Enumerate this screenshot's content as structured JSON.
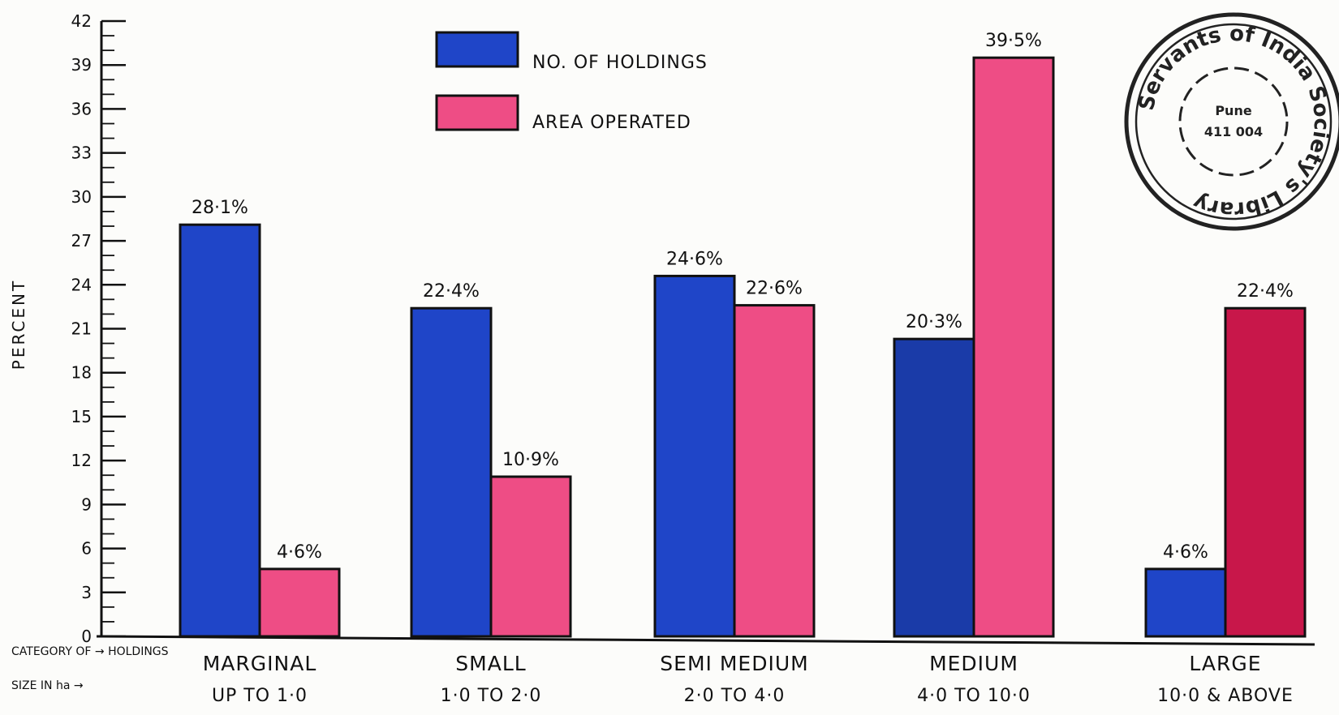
{
  "chart_data": {
    "type": "bar",
    "ylabel": "PERCENT",
    "ylim": [
      0,
      42
    ],
    "yticks": [
      "0",
      "3",
      "6",
      "9",
      "12",
      "15",
      "18",
      "21",
      "24",
      "27",
      "30",
      "33",
      "36",
      "39",
      "42"
    ],
    "axis_notes": {
      "category": "CATEGORY OF → HOLDINGS",
      "size": "SIZE IN ha →"
    },
    "categories": [
      {
        "name": "MARGINAL",
        "range": "UP TO 1·0"
      },
      {
        "name": "SMALL",
        "range": "1·0 TO 2·0"
      },
      {
        "name": "SEMI MEDIUM",
        "range": "2·0 TO 4·0"
      },
      {
        "name": "MEDIUM",
        "range": "4·0 TO 10·0"
      },
      {
        "name": "LARGE",
        "range": "10·0 & ABOVE"
      }
    ],
    "series": [
      {
        "name": "NO. OF HOLDINGS",
        "color": "#1f45c8",
        "values": [
          28.1,
          22.4,
          24.6,
          20.3,
          4.6
        ],
        "labels": [
          "28·1%",
          "22·4%",
          "24·6%",
          "20·3%",
          "4·6%"
        ]
      },
      {
        "name": "AREA OPERATED",
        "color": "#ee4d85",
        "values": [
          4.6,
          10.9,
          22.6,
          39.5,
          22.4
        ],
        "labels": [
          "4·6%",
          "10·9%",
          "22·6%",
          "39·5%",
          "22·4%"
        ]
      }
    ],
    "legend": "top-center",
    "grid": false,
    "colors": {
      "large_area": "#c8174a",
      "medium_holdings": "#1a3ba8"
    }
  },
  "stamp": {
    "ring_text": "Servants of India Society's Library",
    "center_line1": "Pune",
    "center_line2": "411 004"
  }
}
